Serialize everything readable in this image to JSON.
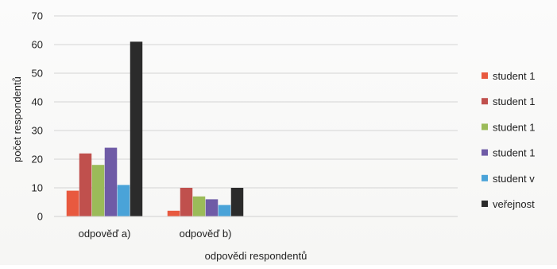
{
  "chart_data": {
    "type": "bar",
    "categories": [
      "odpověď a)",
      "odpověď b)",
      "",
      ""
    ],
    "series": [
      {
        "name": "student 1",
        "values": [
          9,
          2,
          null,
          null
        ]
      },
      {
        "name": "student 1",
        "values": [
          22,
          10,
          null,
          null
        ]
      },
      {
        "name": "student 1",
        "values": [
          18,
          7,
          null,
          null
        ]
      },
      {
        "name": "student 1",
        "values": [
          24,
          6,
          null,
          null
        ]
      },
      {
        "name": "student v",
        "values": [
          11,
          4,
          null,
          null
        ]
      },
      {
        "name": "veřejnost",
        "values": [
          61,
          10,
          null,
          null
        ]
      }
    ],
    "colors": [
      "#e8593f",
      "#c0504d",
      "#9bbb59",
      "#6f5ba6",
      "#4aa3d8",
      "#2b2b2b"
    ],
    "xlabel": "odpovědi respondentů",
    "ylabel": "počet respondentů",
    "ylim": [
      0,
      70
    ],
    "yticks": [
      "0",
      "10",
      "20",
      "30",
      "40",
      "50",
      "60",
      "70"
    ],
    "grid": true,
    "legend_position": "right"
  }
}
